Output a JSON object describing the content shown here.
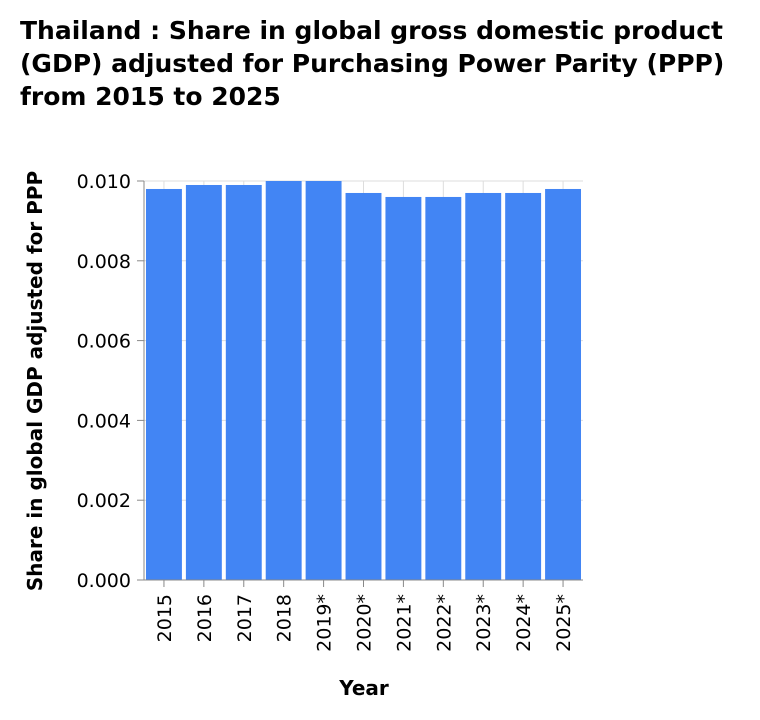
{
  "chart_data": {
    "type": "bar",
    "title": "Thailand : Share in global gross domestic product (GDP) adjusted for Purchasing Power Parity (PPP) from 2015 to 2025",
    "xlabel": "Year",
    "ylabel": "Share in global GDP adjusted for PPP",
    "categories": [
      "2015",
      "2016",
      "2017",
      "2018",
      "2019*",
      "2020*",
      "2021*",
      "2022*",
      "2023*",
      "2024*",
      "2025*"
    ],
    "values": [
      0.0098,
      0.0099,
      0.0099,
      0.01,
      0.01,
      0.0097,
      0.0096,
      0.0096,
      0.0097,
      0.0097,
      0.0098
    ],
    "ylim": [
      0,
      0.01
    ],
    "yticks": [
      "0.000",
      "0.002",
      "0.004",
      "0.006",
      "0.008",
      "0.010"
    ],
    "grid": true,
    "bar_color": "#4285f4",
    "grid_color": "#dddddd"
  }
}
